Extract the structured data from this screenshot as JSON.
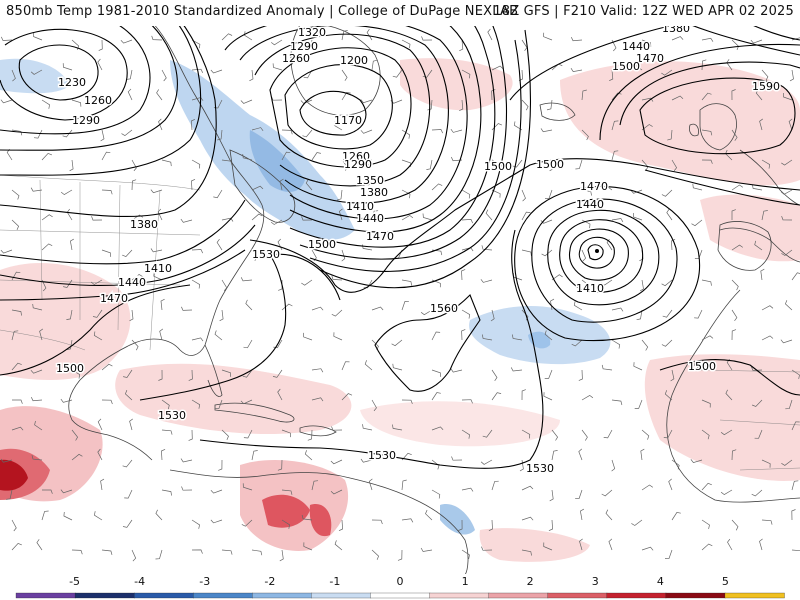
{
  "header": {
    "left_title": "850mb Temp 1981-2010 Standardized Anomaly | College of DuPage NEXLAB",
    "right_title": "18Z GFS | F210 Valid: 12Z WED APR 02 2025"
  },
  "contours": {
    "labels": [
      "1230",
      "1260",
      "1290",
      "1320",
      "1290",
      "1260",
      "1200",
      "1170",
      "1260",
      "1290",
      "1350",
      "1380",
      "1410",
      "1440",
      "1470",
      "1500",
      "1380",
      "1410",
      "1440",
      "1470",
      "1530",
      "1500",
      "1530",
      "1530",
      "1560",
      "1500",
      "1470",
      "1440",
      "1410",
      "1500",
      "1380",
      "1440",
      "1470",
      "1500",
      "1590",
      "1500"
    ]
  },
  "legend": {
    "ticks": [
      "-5",
      "-4",
      "-3",
      "-2",
      "-1",
      "0",
      "1",
      "2",
      "3",
      "4",
      "5"
    ],
    "colors": [
      "#6a3fa0",
      "#1c2f6b",
      "#2a5aa8",
      "#4b86c8",
      "#8db7e3",
      "#c9dcf1",
      "#ffffff",
      "#f6d3d3",
      "#eba3a8",
      "#db5f67",
      "#c4212e",
      "#8a0a14",
      "#f0c020"
    ]
  },
  "colors": {
    "cold_anomaly": "#a9c9ea",
    "warm_anomaly": "#f2b6b9",
    "strong_warm": "#d23b45",
    "very_strong_warm": "#a3101c"
  }
}
